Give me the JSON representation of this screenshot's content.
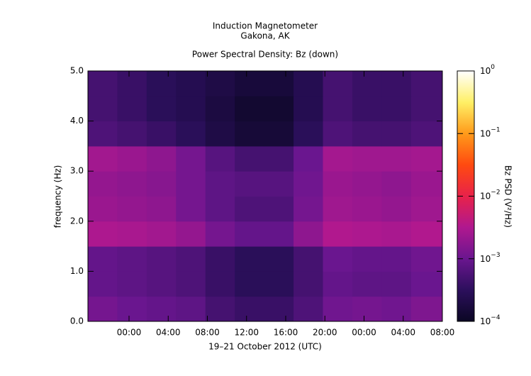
{
  "chart_data": {
    "type": "spectrogram",
    "title": "Induction Magnetometer",
    "subtitle": "Gakona, AK",
    "plot_title": "Power Spectral Density: Bz (down)",
    "x_label": "19–21 October 2012 (UTC)",
    "y_label": "frequency (Hz)",
    "colorbar_label": "Bz PSD (V²/Hz)",
    "xlim": [
      -4.2,
      32
    ],
    "xticks": [
      {
        "value": 0,
        "label": "00:00"
      },
      {
        "value": 4,
        "label": "04:00"
      },
      {
        "value": 8,
        "label": "08:00"
      },
      {
        "value": 12,
        "label": "12:00"
      },
      {
        "value": 16,
        "label": "16:00"
      },
      {
        "value": 20,
        "label": "20:00"
      },
      {
        "value": 24,
        "label": "00:00"
      },
      {
        "value": 28,
        "label": "04:00"
      },
      {
        "value": 32,
        "label": "08:00"
      }
    ],
    "ylim": [
      0,
      5
    ],
    "yticks": [
      {
        "value": 0,
        "label": "0.0"
      },
      {
        "value": 1,
        "label": "1.0"
      },
      {
        "value": 2,
        "label": "2.0"
      },
      {
        "value": 3,
        "label": "3.0"
      },
      {
        "value": 4,
        "label": "4.0"
      },
      {
        "value": 5,
        "label": "5.0"
      }
    ],
    "clim": [
      0.0001,
      1
    ],
    "color_scale": "log",
    "cticks": [
      {
        "value": 0.0001,
        "label": "10",
        "exponent": "−4"
      },
      {
        "value": 0.001,
        "label": "10",
        "exponent": "−3"
      },
      {
        "value": 0.01,
        "label": "10",
        "exponent": "−2"
      },
      {
        "value": 0.1,
        "label": "10",
        "exponent": "−1"
      },
      {
        "value": 1,
        "label": "10",
        "exponent": "0"
      }
    ],
    "colormap": [
      "#0b0724",
      "#2c0f5c",
      "#6a168f",
      "#b0188f",
      "#e8224a",
      "#ff4a10",
      "#ff9a1a",
      "#fff066",
      "#ffffff"
    ],
    "time_edges": [
      -4.2,
      -1.2,
      1.8,
      4.8,
      7.8,
      10.8,
      13.8,
      16.8,
      19.8,
      22.8,
      25.8,
      28.8,
      32
    ],
    "freq_edges": [
      0,
      0.5,
      1,
      1.5,
      2,
      2.5,
      3,
      3.5,
      4,
      4.5,
      5
    ],
    "z": [
      [
        0.0012,
        0.001,
        0.0009,
        0.0008,
        0.0005,
        0.0004,
        0.0004,
        0.0006,
        0.0011,
        0.0012,
        0.0011,
        0.0014
      ],
      [
        0.0009,
        0.0008,
        0.0007,
        0.0006,
        0.0004,
        0.0003,
        0.0003,
        0.0005,
        0.0009,
        0.0008,
        0.0008,
        0.001
      ],
      [
        0.0009,
        0.0008,
        0.0007,
        0.0006,
        0.0004,
        0.0003,
        0.0003,
        0.0005,
        0.001,
        0.0009,
        0.0009,
        0.0011
      ],
      [
        0.003,
        0.0028,
        0.0025,
        0.002,
        0.0012,
        0.0009,
        0.0009,
        0.0018,
        0.0032,
        0.003,
        0.0028,
        0.0032
      ],
      [
        0.0022,
        0.002,
        0.0018,
        0.0012,
        0.0008,
        0.0006,
        0.0006,
        0.0012,
        0.0024,
        0.0022,
        0.002,
        0.0024
      ],
      [
        0.002,
        0.0018,
        0.0016,
        0.0012,
        0.0008,
        0.0007,
        0.0007,
        0.0011,
        0.0022,
        0.002,
        0.0018,
        0.0022
      ],
      [
        0.0025,
        0.0022,
        0.0018,
        0.0012,
        0.0007,
        0.0005,
        0.0005,
        0.001,
        0.0026,
        0.0024,
        0.0024,
        0.0026
      ],
      [
        0.0006,
        0.0005,
        0.0004,
        0.0003,
        0.0002,
        0.00015,
        0.00015,
        0.0003,
        0.0006,
        0.0005,
        0.0005,
        0.0006
      ],
      [
        0.0005,
        0.0004,
        0.0003,
        0.00025,
        0.00018,
        0.00013,
        0.00013,
        0.00025,
        0.0005,
        0.0004,
        0.0004,
        0.0005
      ],
      [
        0.0005,
        0.0004,
        0.0003,
        0.00025,
        0.0002,
        0.00016,
        0.00016,
        0.00025,
        0.0005,
        0.0004,
        0.0004,
        0.0005
      ]
    ]
  }
}
